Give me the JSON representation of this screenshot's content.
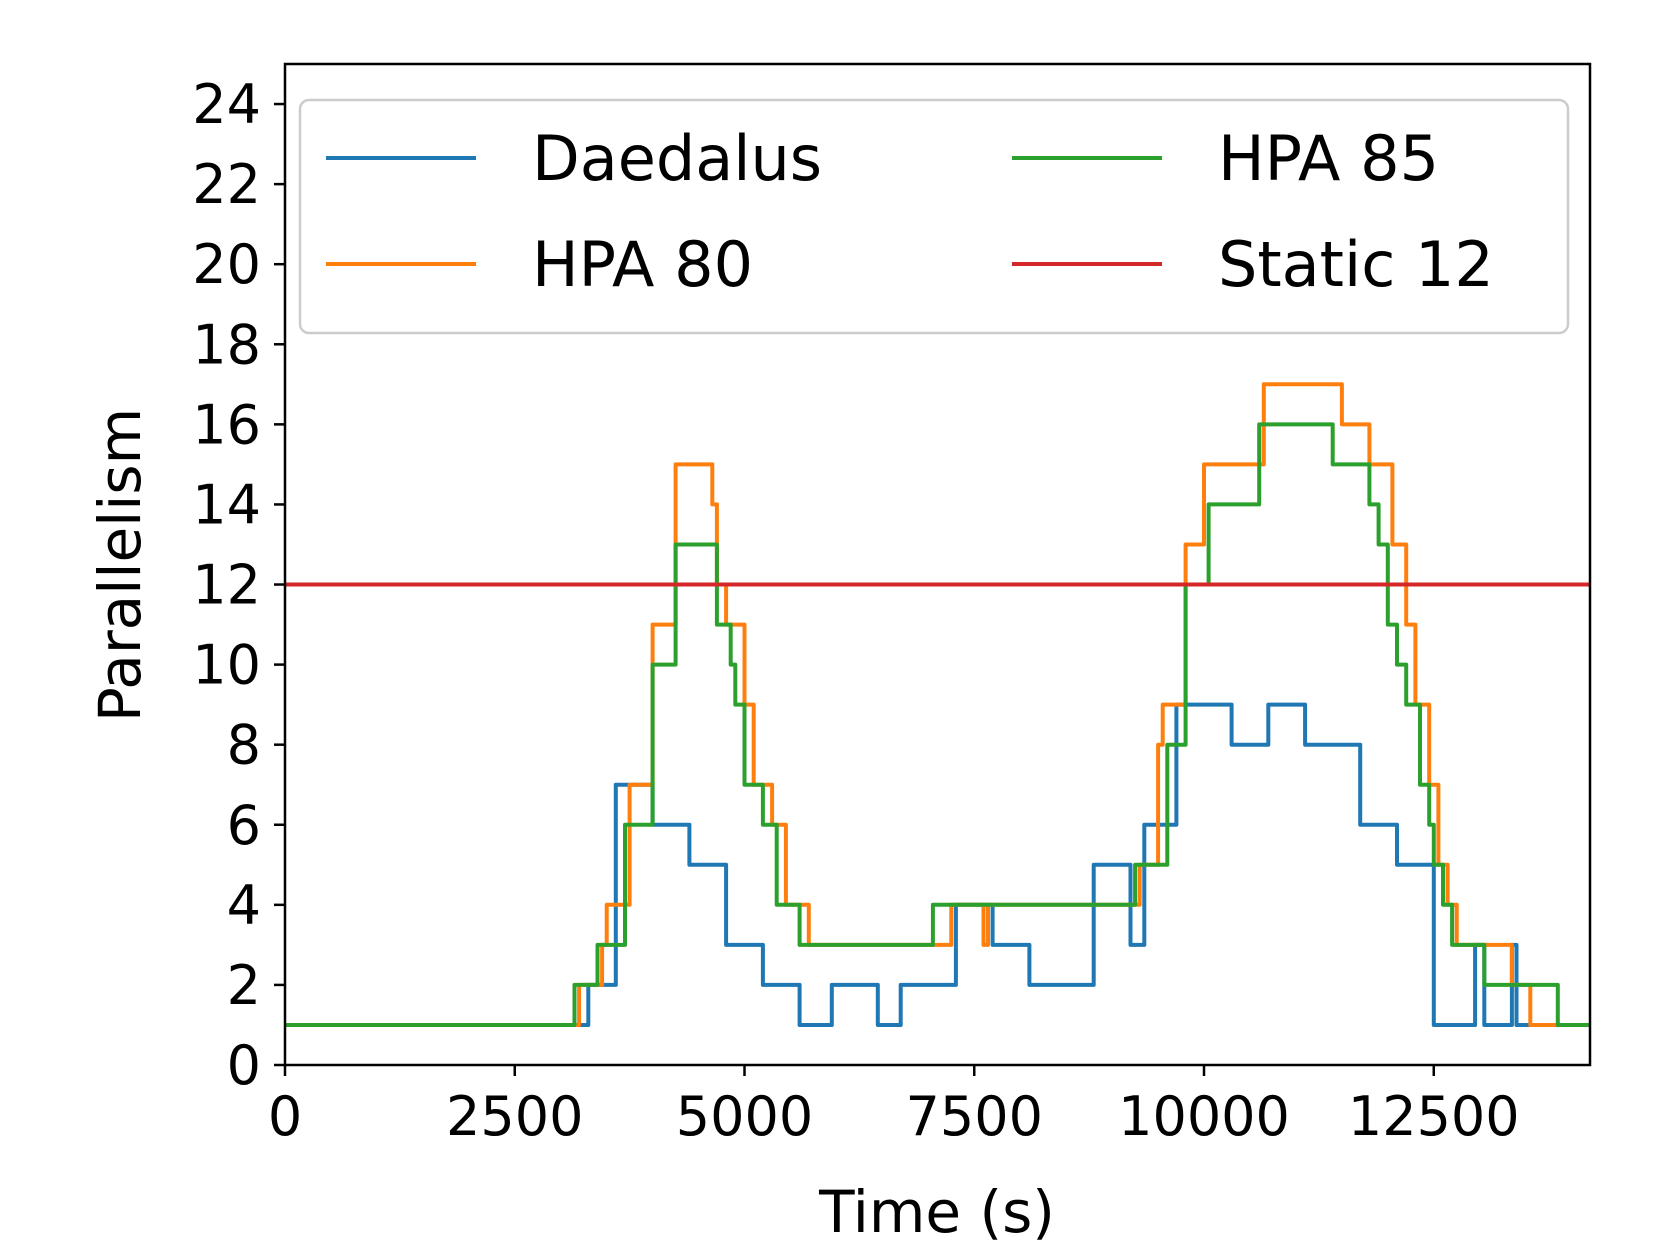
{
  "chart_data": {
    "type": "line",
    "step": "post",
    "title": "",
    "xlabel": "Time (s)",
    "ylabel": "Parallelism",
    "xlim": [
      0,
      14200
    ],
    "ylim": [
      0,
      25
    ],
    "xticks": [
      0,
      2500,
      5000,
      7500,
      10000,
      12500
    ],
    "xtick_labels": [
      "0",
      "2500",
      "5000",
      "7500",
      "10000",
      "12500"
    ],
    "yticks": [
      0,
      2,
      4,
      6,
      8,
      10,
      12,
      14,
      16,
      18,
      20,
      22,
      24
    ],
    "ytick_labels": [
      "0",
      "2",
      "4",
      "6",
      "8",
      "10",
      "12",
      "14",
      "16",
      "18",
      "20",
      "22",
      "24"
    ],
    "grid": false,
    "legend": {
      "placement": "top",
      "columns": 2
    },
    "series": [
      {
        "name": "Daedalus",
        "color": "#1f77b4",
        "points": [
          [
            0,
            1
          ],
          [
            3300,
            1
          ],
          [
            3300,
            2
          ],
          [
            3600,
            2
          ],
          [
            3600,
            7
          ],
          [
            4000,
            7
          ],
          [
            4000,
            6
          ],
          [
            4400,
            6
          ],
          [
            4400,
            5
          ],
          [
            4800,
            5
          ],
          [
            4800,
            3
          ],
          [
            5200,
            3
          ],
          [
            5200,
            2
          ],
          [
            5600,
            2
          ],
          [
            5600,
            1
          ],
          [
            5950,
            1
          ],
          [
            5950,
            2
          ],
          [
            6450,
            2
          ],
          [
            6450,
            1
          ],
          [
            6700,
            1
          ],
          [
            6700,
            2
          ],
          [
            7300,
            2
          ],
          [
            7300,
            4
          ],
          [
            7700,
            4
          ],
          [
            7700,
            3
          ],
          [
            8100,
            3
          ],
          [
            8100,
            2
          ],
          [
            8800,
            2
          ],
          [
            8800,
            5
          ],
          [
            9200,
            5
          ],
          [
            9200,
            3
          ],
          [
            9350,
            3
          ],
          [
            9350,
            6
          ],
          [
            9700,
            6
          ],
          [
            9700,
            9
          ],
          [
            10300,
            9
          ],
          [
            10300,
            8
          ],
          [
            10700,
            8
          ],
          [
            10700,
            9
          ],
          [
            11100,
            9
          ],
          [
            11100,
            8
          ],
          [
            11700,
            8
          ],
          [
            11700,
            6
          ],
          [
            12100,
            6
          ],
          [
            12100,
            5
          ],
          [
            12500,
            5
          ],
          [
            12500,
            1
          ],
          [
            12950,
            1
          ],
          [
            12950,
            3
          ],
          [
            13050,
            3
          ],
          [
            13050,
            1
          ],
          [
            13350,
            1
          ],
          [
            13350,
            3
          ],
          [
            13400,
            3
          ],
          [
            13400,
            1
          ],
          [
            14200,
            1
          ]
        ]
      },
      {
        "name": "HPA 80",
        "color": "#ff7f0e",
        "points": [
          [
            0,
            1
          ],
          [
            3200,
            1
          ],
          [
            3200,
            2
          ],
          [
            3450,
            2
          ],
          [
            3450,
            3
          ],
          [
            3500,
            3
          ],
          [
            3500,
            4
          ],
          [
            3750,
            4
          ],
          [
            3750,
            7
          ],
          [
            4000,
            7
          ],
          [
            4000,
            11
          ],
          [
            4250,
            11
          ],
          [
            4250,
            15
          ],
          [
            4650,
            15
          ],
          [
            4650,
            14
          ],
          [
            4700,
            14
          ],
          [
            4700,
            12
          ],
          [
            4800,
            12
          ],
          [
            4800,
            11
          ],
          [
            5000,
            11
          ],
          [
            5000,
            9
          ],
          [
            5100,
            9
          ],
          [
            5100,
            7
          ],
          [
            5300,
            7
          ],
          [
            5300,
            6
          ],
          [
            5450,
            6
          ],
          [
            5450,
            4
          ],
          [
            5700,
            4
          ],
          [
            5700,
            3
          ],
          [
            7250,
            3
          ],
          [
            7250,
            4
          ],
          [
            7600,
            4
          ],
          [
            7600,
            3
          ],
          [
            7650,
            3
          ],
          [
            7650,
            4
          ],
          [
            9300,
            4
          ],
          [
            9300,
            5
          ],
          [
            9500,
            5
          ],
          [
            9500,
            8
          ],
          [
            9550,
            8
          ],
          [
            9550,
            9
          ],
          [
            9800,
            9
          ],
          [
            9800,
            13
          ],
          [
            10000,
            13
          ],
          [
            10000,
            15
          ],
          [
            10650,
            15
          ],
          [
            10650,
            17
          ],
          [
            11500,
            17
          ],
          [
            11500,
            16
          ],
          [
            11800,
            16
          ],
          [
            11800,
            15
          ],
          [
            12050,
            15
          ],
          [
            12050,
            13
          ],
          [
            12200,
            13
          ],
          [
            12200,
            11
          ],
          [
            12300,
            11
          ],
          [
            12300,
            9
          ],
          [
            12450,
            9
          ],
          [
            12450,
            7
          ],
          [
            12550,
            7
          ],
          [
            12550,
            5
          ],
          [
            12650,
            5
          ],
          [
            12650,
            4
          ],
          [
            12750,
            4
          ],
          [
            12750,
            3
          ],
          [
            13350,
            3
          ],
          [
            13350,
            2
          ],
          [
            13550,
            2
          ],
          [
            13550,
            1
          ],
          [
            14200,
            1
          ]
        ]
      },
      {
        "name": "HPA 85",
        "color": "#2ca02c",
        "points": [
          [
            0,
            1
          ],
          [
            3150,
            1
          ],
          [
            3150,
            2
          ],
          [
            3400,
            2
          ],
          [
            3400,
            3
          ],
          [
            3700,
            3
          ],
          [
            3700,
            6
          ],
          [
            4000,
            6
          ],
          [
            4000,
            10
          ],
          [
            4250,
            10
          ],
          [
            4250,
            13
          ],
          [
            4700,
            13
          ],
          [
            4700,
            11
          ],
          [
            4850,
            11
          ],
          [
            4850,
            10
          ],
          [
            4900,
            10
          ],
          [
            4900,
            9
          ],
          [
            5000,
            9
          ],
          [
            5000,
            7
          ],
          [
            5200,
            7
          ],
          [
            5200,
            6
          ],
          [
            5350,
            6
          ],
          [
            5350,
            4
          ],
          [
            5600,
            4
          ],
          [
            5600,
            3
          ],
          [
            7050,
            3
          ],
          [
            7050,
            4
          ],
          [
            9250,
            4
          ],
          [
            9250,
            5
          ],
          [
            9600,
            5
          ],
          [
            9600,
            8
          ],
          [
            9800,
            8
          ],
          [
            9800,
            12
          ],
          [
            10050,
            12
          ],
          [
            10050,
            14
          ],
          [
            10600,
            14
          ],
          [
            10600,
            16
          ],
          [
            11400,
            16
          ],
          [
            11400,
            15
          ],
          [
            11800,
            15
          ],
          [
            11800,
            14
          ],
          [
            11900,
            14
          ],
          [
            11900,
            13
          ],
          [
            12000,
            13
          ],
          [
            12000,
            11
          ],
          [
            12100,
            11
          ],
          [
            12100,
            10
          ],
          [
            12200,
            10
          ],
          [
            12200,
            9
          ],
          [
            12350,
            9
          ],
          [
            12350,
            7
          ],
          [
            12450,
            7
          ],
          [
            12450,
            6
          ],
          [
            12500,
            6
          ],
          [
            12500,
            5
          ],
          [
            12600,
            5
          ],
          [
            12600,
            4
          ],
          [
            12700,
            4
          ],
          [
            12700,
            3
          ],
          [
            13050,
            3
          ],
          [
            13050,
            2
          ],
          [
            13850,
            2
          ],
          [
            13850,
            1
          ],
          [
            14200,
            1
          ]
        ]
      },
      {
        "name": "Static 12",
        "color": "#d62728",
        "points": [
          [
            0,
            12
          ],
          [
            14200,
            12
          ]
        ]
      }
    ]
  }
}
